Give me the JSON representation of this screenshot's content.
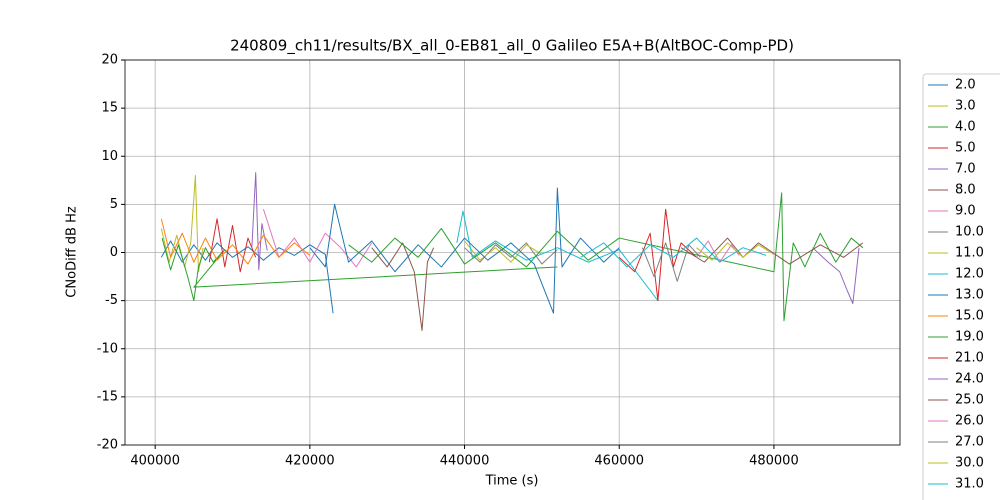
{
  "chart_data": {
    "type": "line",
    "title": "240809_ch11/results/BX_all_0-EB81_all_0 Galileo E5A+B(AltBOC-Comp-PD)",
    "xlabel": "Time (s)",
    "ylabel": "CNoDiff dB Hz",
    "xlim": [
      396100,
      496300
    ],
    "ylim": [
      -20,
      20
    ],
    "xticks": [
      400000,
      420000,
      440000,
      460000,
      480000
    ],
    "yticks": [
      -20,
      -15,
      -10,
      -5,
      0,
      5,
      10,
      15,
      20
    ],
    "grid": true,
    "series": [
      {
        "name": "2.0",
        "color": "#1f77b4",
        "x": [
          400800,
          402000,
          403500,
          405000,
          406500,
          408000,
          410000,
          412000,
          414000,
          416000,
          418000,
          420000,
          422000,
          423000
        ],
        "values": [
          -0.5,
          1.2,
          -1,
          0.8,
          -0.8,
          1,
          -0.5,
          0.6,
          -0.8,
          0.5,
          -0.3,
          0.8,
          -0.2,
          -6.3
        ]
      },
      {
        "name": "3.0",
        "color": "#bcbd22",
        "x": [
          400800,
          401800,
          402800,
          403800,
          404600,
          405200,
          405600,
          406200
        ],
        "values": [
          2.5,
          -1,
          1.8,
          -1.5,
          1,
          8,
          -2,
          0.5
        ]
      },
      {
        "name": "4.0",
        "color": "#2ca02c",
        "x": [
          400900,
          402000,
          403000,
          404200,
          405000,
          405600,
          406500,
          407500,
          409000,
          405000,
          452000
        ],
        "values": [
          1.5,
          -1.8,
          0.8,
          -2.5,
          -5,
          -1.5,
          0.5,
          -1,
          0.3,
          -3.6,
          -1.5
        ]
      },
      {
        "name": "5.0",
        "color": "#d62728",
        "x": [
          407000,
          408000,
          409000,
          410000,
          411000,
          412000,
          413000
        ],
        "values": [
          -1,
          3.5,
          -1.5,
          2.8,
          -2,
          1.5,
          -0.5
        ]
      },
      {
        "name": "7.0",
        "color": "#9467bd",
        "x": [
          412500,
          413000,
          413400,
          413800,
          414500
        ],
        "values": [
          0.5,
          8.3,
          -1.8,
          3,
          0.2
        ]
      },
      {
        "name": "8.0",
        "color": "#8c564b",
        "x": [
          428000,
          430000,
          432000,
          433500,
          434500,
          435200,
          436000
        ],
        "values": [
          0.5,
          -1.5,
          1,
          -2,
          -8.1,
          -1,
          0.5
        ]
      },
      {
        "name": "9.0",
        "color": "#e377c2",
        "x": [
          414000,
          416000,
          418000,
          420000,
          422000,
          424000,
          426000,
          428000
        ],
        "values": [
          4.5,
          -0.5,
          1.5,
          -1,
          2,
          0.5,
          -1.5,
          1
        ]
      },
      {
        "name": "10.0",
        "color": "#7f7f7f",
        "x": [
          440000,
          442000,
          444000,
          446000,
          448000,
          450000,
          452000
        ],
        "values": [
          0.5,
          -1,
          0.8,
          -0.5,
          1,
          -1.2,
          0.3
        ]
      },
      {
        "name": "11.0",
        "color": "#bcbd22",
        "x": [
          440000,
          442000,
          444000,
          446000,
          448000,
          450000
        ],
        "values": [
          1.2,
          -0.8,
          0.5,
          -1,
          0.8,
          -0.2
        ]
      },
      {
        "name": "12.0",
        "color": "#17becf",
        "x": [
          439000,
          439800,
          441000,
          444000,
          448000,
          452000,
          456000,
          460000,
          465000
        ],
        "values": [
          1,
          4.3,
          -0.5,
          1.2,
          -0.8,
          0.5,
          -1,
          0.3,
          -5
        ]
      },
      {
        "name": "13.0",
        "color": "#1f77b4",
        "x": [
          420000,
          422000,
          423200,
          425000,
          428000,
          431000,
          434000,
          437000,
          440000,
          443000,
          446000,
          449000,
          451500,
          452000,
          452600,
          455000,
          458000,
          460000
        ],
        "values": [
          0.5,
          -1.5,
          5,
          -1,
          1.2,
          -2,
          0.8,
          -1.5,
          1.5,
          -0.8,
          1,
          -1.2,
          -6.3,
          6.7,
          -1.5,
          1.5,
          -1,
          0.5
        ]
      },
      {
        "name": "15.0",
        "color": "#ff7f0e",
        "x": [
          400800,
          402000,
          403500,
          405000,
          406500,
          408000,
          410000,
          412000,
          414000,
          416000,
          418000,
          420000
        ],
        "values": [
          3.5,
          -0.5,
          2,
          -1,
          1.5,
          -0.8,
          0.8,
          -1.2,
          1.8,
          -0.5,
          1,
          -0.3
        ]
      },
      {
        "name": "19.0",
        "color": "#2ca02c",
        "x": [
          425000,
          428000,
          431000,
          434000,
          437000,
          440000,
          444000,
          448000,
          452000,
          456000,
          460000,
          480000,
          481000,
          481300,
          482500,
          484000,
          486000,
          488000,
          490000,
          491500
        ],
        "values": [
          0.8,
          -1,
          1.5,
          -0.5,
          2.5,
          -1.2,
          1,
          -1.5,
          2.2,
          -0.8,
          1.5,
          -2,
          6.2,
          -7.1,
          1,
          -1.5,
          2,
          -1,
          1.5,
          0.5
        ]
      },
      {
        "name": "21.0",
        "color": "#d62728",
        "x": [
          460000,
          462000,
          464000,
          465000,
          466000,
          467000,
          468000,
          470000
        ],
        "values": [
          -0.5,
          -2,
          2,
          -5,
          4.5,
          -1.5,
          1,
          -0.5
        ]
      },
      {
        "name": "24.0",
        "color": "#9467bd",
        "x": [
          485000,
          487000,
          488500,
          489500,
          490200,
          491000
        ],
        "values": [
          0.5,
          -1,
          -2,
          -4,
          -5.3,
          0.5
        ]
      },
      {
        "name": "25.0",
        "color": "#8c564b",
        "x": [
          468000,
          471000,
          474000,
          476000,
          478000,
          482000,
          486000,
          489000,
          491500
        ],
        "values": [
          0.5,
          -1,
          1.5,
          -0.5,
          1,
          -1.2,
          0.8,
          -0.5,
          1
        ]
      },
      {
        "name": "26.0",
        "color": "#e377c2",
        "x": [
          470000,
          471500,
          473000,
          474500,
          475500
        ],
        "values": [
          -0.5,
          1.2,
          -1,
          0.8,
          -0.3
        ]
      },
      {
        "name": "27.0",
        "color": "#7f7f7f",
        "x": [
          463000,
          464500,
          466000,
          467500,
          469000,
          470500
        ],
        "values": [
          0.5,
          -2.5,
          1,
          -3,
          0.8,
          -0.5
        ]
      },
      {
        "name": "30.0",
        "color": "#bcbd22",
        "x": [
          470000,
          472000,
          474000,
          476000,
          478000,
          480000
        ],
        "values": [
          0.5,
          -0.8,
          1,
          -0.5,
          0.8,
          -0.2
        ]
      },
      {
        "name": "31.0",
        "color": "#17becf",
        "x": [
          455000,
          458000,
          461000,
          464000,
          467000,
          470000,
          473000,
          476000,
          479000
        ],
        "values": [
          -0.5,
          1,
          -1.5,
          0.8,
          -0.5,
          1.5,
          -1,
          0.5,
          -0.3
        ]
      }
    ]
  }
}
